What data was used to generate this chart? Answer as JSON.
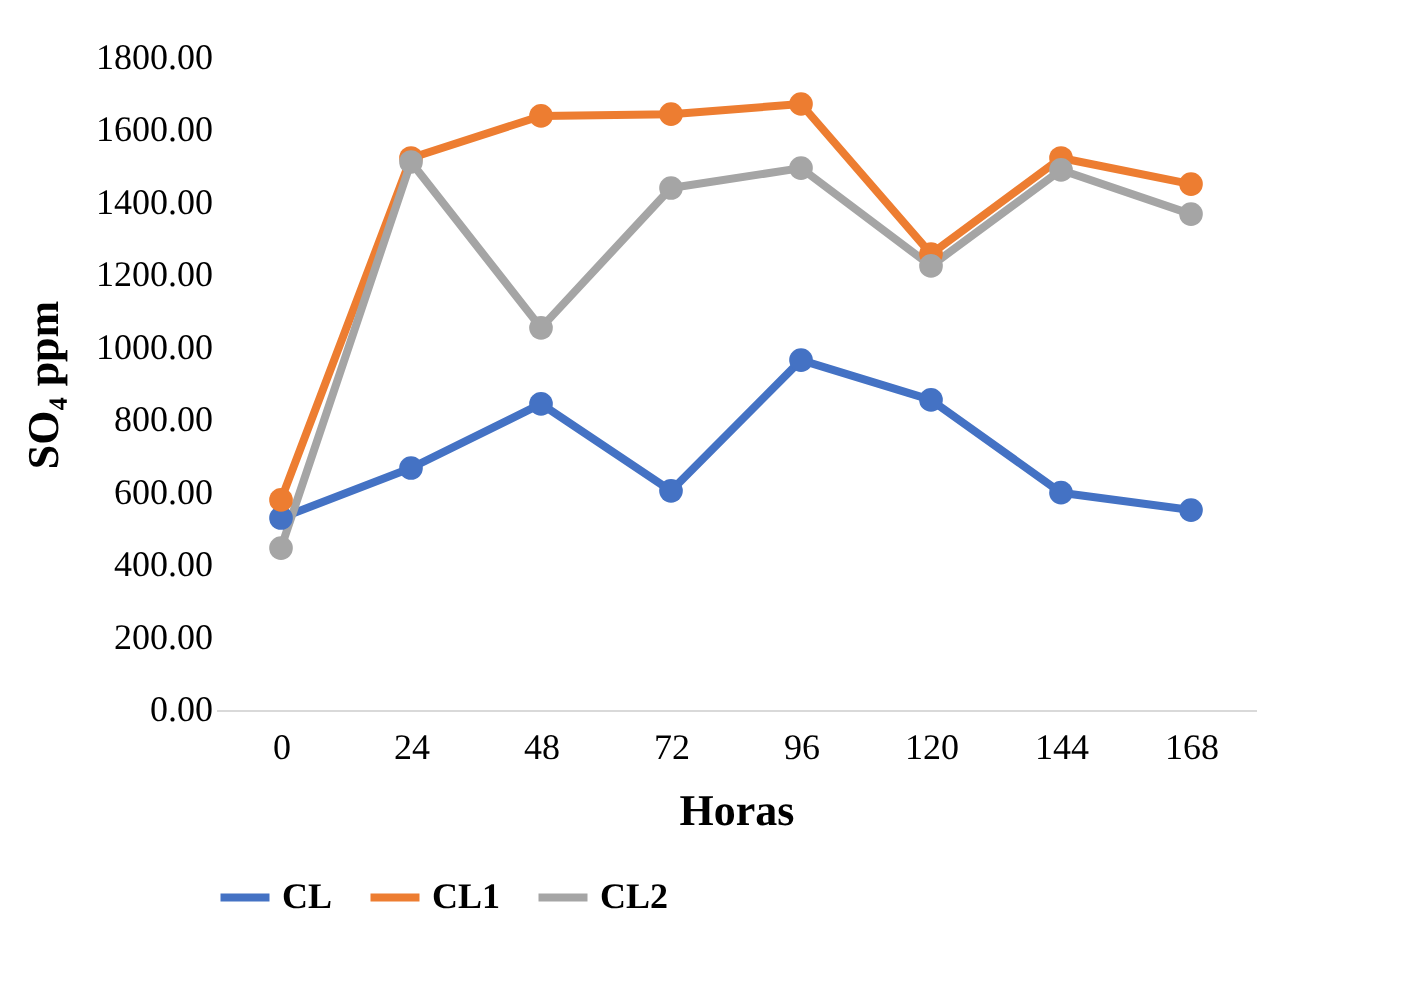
{
  "chart_data": {
    "type": "line",
    "xlabel": "Horas",
    "ylabel": "SO₄ ppm",
    "categories": [
      "0",
      "24",
      "48",
      "72",
      "96",
      "120",
      "144",
      "168"
    ],
    "series": [
      {
        "name": "CL",
        "color": "#4472c4",
        "values": [
          530,
          668,
          845,
          605,
          966,
          856,
          600,
          552
        ]
      },
      {
        "name": "CL1",
        "color": "#ed7d31",
        "values": [
          580,
          1524,
          1640,
          1645,
          1673,
          1259,
          1524,
          1452
        ]
      },
      {
        "name": "CL2",
        "color": "#a5a5a5",
        "values": [
          447,
          1513,
          1055,
          1441,
          1496,
          1226,
          1491,
          1369
        ]
      }
    ],
    "ylim": [
      0,
      1800
    ],
    "yticks": [
      {
        "value": 0,
        "label": "0.00"
      },
      {
        "value": 200,
        "label": "200.00"
      },
      {
        "value": 400,
        "label": "400.00"
      },
      {
        "value": 600,
        "label": "600.00"
      },
      {
        "value": 800,
        "label": "800.00"
      },
      {
        "value": 1000,
        "label": "1000.00"
      },
      {
        "value": 1200,
        "label": "1200.00"
      },
      {
        "value": 1400,
        "label": "1400.00"
      },
      {
        "value": 1600,
        "label": "1600.00"
      },
      {
        "value": 1800,
        "label": "1800.00"
      }
    ],
    "grid": false,
    "legend": "bottom",
    "marker": "circle",
    "line_style": "solid"
  }
}
